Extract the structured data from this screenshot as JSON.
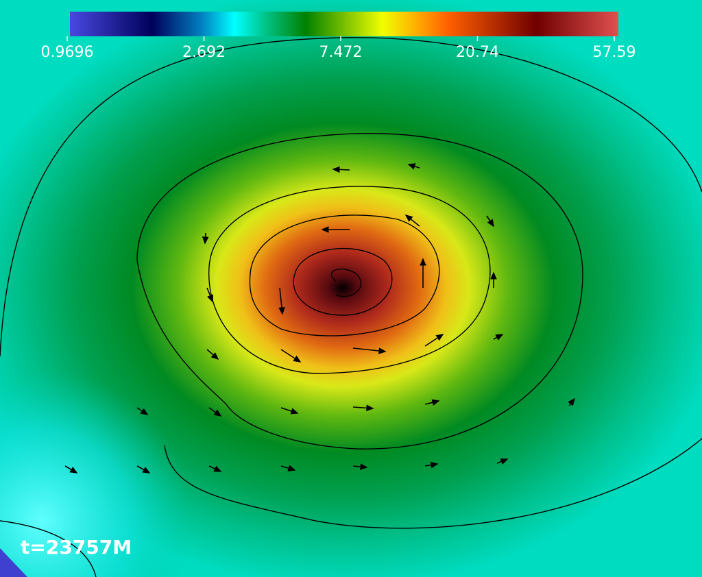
{
  "colorbar": {
    "ticks": [
      "0.9696",
      "2.692",
      "7.472",
      "20.74",
      "57.59"
    ]
  },
  "time_label": "t=23757M"
}
